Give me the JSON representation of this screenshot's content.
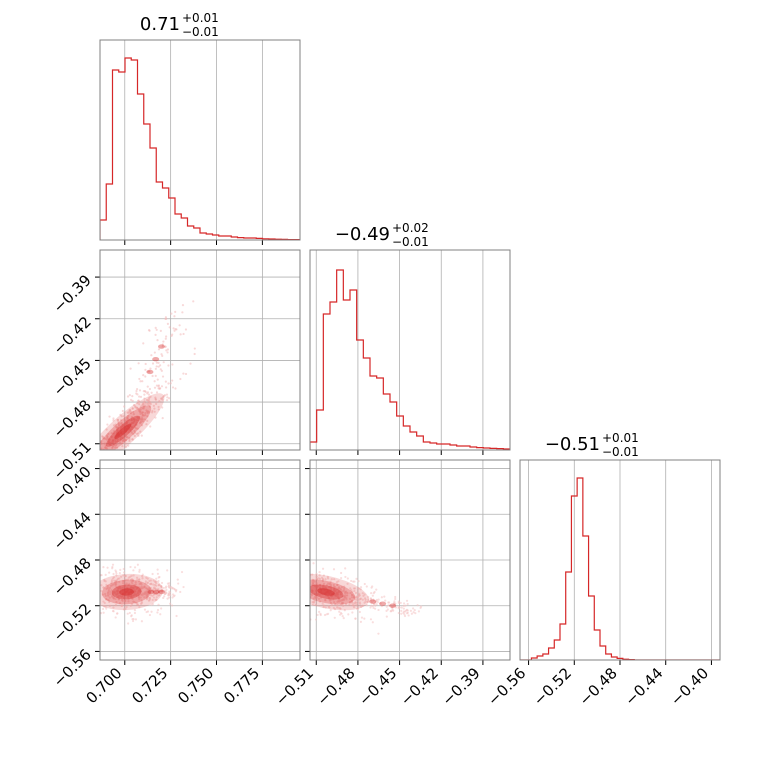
{
  "chart_data": {
    "type": "corner",
    "color": "#d62728",
    "parameters": [
      {
        "title_value": "0.71",
        "title_upper": "+0.01",
        "title_lower": "−0.01",
        "range": [
          0.6865,
          0.7955
        ],
        "ticks": [
          0.7,
          0.725,
          0.75,
          0.775
        ],
        "tick_labels": [
          "0.700",
          "0.725",
          "0.750",
          "0.775"
        ],
        "hist": [
          0.1,
          0.28,
          0.85,
          0.84,
          0.91,
          0.9,
          0.73,
          0.58,
          0.46,
          0.29,
          0.26,
          0.21,
          0.13,
          0.11,
          0.07,
          0.06,
          0.035,
          0.03,
          0.025,
          0.02,
          0.02,
          0.015,
          0.012,
          0.01,
          0.01,
          0.008,
          0.006,
          0.005,
          0.004,
          0.003,
          0.002,
          0.002
        ]
      },
      {
        "title_value": "−0.49",
        "title_upper": "+0.02",
        "title_lower": "−0.01",
        "range": [
          -0.5145,
          -0.3705
        ],
        "ticks": [
          -0.51,
          -0.48,
          -0.45,
          -0.42,
          -0.39
        ],
        "tick_labels": [
          "−0.51",
          "−0.48",
          "−0.45",
          "−0.42",
          "−0.39"
        ],
        "hist": [
          0.04,
          0.2,
          0.68,
          0.74,
          0.9,
          0.75,
          0.8,
          0.55,
          0.46,
          0.37,
          0.36,
          0.28,
          0.24,
          0.17,
          0.12,
          0.09,
          0.07,
          0.04,
          0.035,
          0.03,
          0.03,
          0.025,
          0.02,
          0.02,
          0.015,
          0.012,
          0.01,
          0.008,
          0.007,
          0.005
        ]
      },
      {
        "title_value": "−0.51",
        "title_upper": "+0.01",
        "title_lower": "−0.01",
        "range": [
          -0.5675,
          -0.3925
        ],
        "ticks": [
          -0.56,
          -0.52,
          -0.48,
          -0.44,
          -0.4
        ],
        "tick_labels": [
          "−0.56",
          "−0.52",
          "−0.48",
          "−0.44",
          "−0.40"
        ],
        "hist": [
          0,
          0,
          0.01,
          0.02,
          0.03,
          0.06,
          0.1,
          0.18,
          0.44,
          0.82,
          0.91,
          0.62,
          0.32,
          0.15,
          0.07,
          0.03,
          0.015,
          0.008,
          0.004,
          0.002,
          0,
          0,
          0,
          0,
          0,
          0,
          0,
          0,
          0,
          0,
          0,
          0,
          0,
          0,
          0
        ]
      }
    ],
    "pairs": [
      {
        "x_param": 0,
        "y_param": 1,
        "center": [
          0.699,
          -0.501
        ],
        "sigma": [
          0.01,
          0.013
        ],
        "correlation": 0.92,
        "tail": [
          0.72,
          -0.44
        ]
      },
      {
        "x_param": 0,
        "y_param": 2,
        "center": [
          0.701,
          -0.508
        ],
        "sigma": [
          0.009,
          0.008
        ],
        "correlation": 0.1,
        "tail": [
          0.72,
          -0.508
        ]
      },
      {
        "x_param": 1,
        "y_param": 2,
        "center": [
          -0.503,
          -0.508
        ],
        "sigma": [
          0.014,
          0.008
        ],
        "correlation": -0.45,
        "tail": [
          -0.455,
          -0.52
        ]
      }
    ]
  }
}
